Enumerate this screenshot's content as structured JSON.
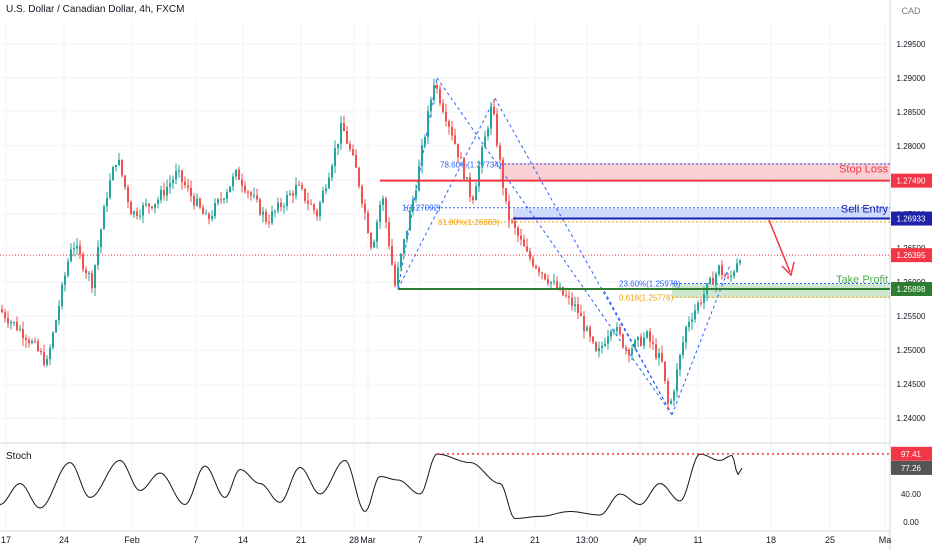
{
  "header": {
    "title": "U.S. Dollar / Canadian Dollar, 4h, FXCM",
    "currency": "CAD"
  },
  "indicator": {
    "name": "Stoch"
  },
  "chart_data": [
    {
      "type": "candlestick",
      "price_axis": {
        "ticks": [
          "1.29500",
          "1.29000",
          "1.28500",
          "1.28000",
          "1.27500",
          "1.27000",
          "1.26500",
          "1.26000",
          "1.25500",
          "1.25000",
          "1.24500",
          "1.24000"
        ],
        "ylim": [
          1.2365,
          1.2985
        ]
      },
      "time_axis": {
        "ticks": [
          "17",
          "24",
          "Feb",
          "7",
          "14",
          "21",
          "28",
          "Mar",
          "7",
          "14",
          "21",
          "13:00",
          "Apr",
          "11",
          "18",
          "25",
          "Ma"
        ]
      },
      "price_labels": [
        {
          "name": "stop-loss",
          "value": "1.27490",
          "color": "#f23645"
        },
        {
          "name": "sell-entry",
          "value": "1.26933",
          "color": "#1e22aa"
        },
        {
          "name": "current",
          "value": "1.26395",
          "color": "#f23645"
        },
        {
          "name": "take-profit",
          "value": "1.25898",
          "color": "#2e7d32"
        }
      ],
      "levels": {
        "stop_loss": {
          "label": "Stop Loss",
          "value": 1.2749,
          "zone": [
            1.2749,
            1.2775
          ],
          "color": "#f23645"
        },
        "sell_entry": {
          "label": "Sell Entry",
          "value": 1.26933,
          "zone": [
            1.26933,
            1.2708
          ],
          "color": "#1e22aa"
        },
        "take_profit": {
          "label": "Take Profit",
          "value": 1.25898,
          "zone": [
            1.2577,
            1.2597
          ],
          "color": "#4caf50"
        }
      },
      "fib_labels": [
        {
          "text": "78.60%(1.27734)",
          "color": "#2962ff",
          "price": 1.2773
        },
        {
          "text": "1(1.27092)",
          "color": "#2962ff",
          "price": 1.27092
        },
        {
          "text": "61.80%(1.26883)",
          "color": "#f0a30a",
          "price": 1.2688
        },
        {
          "text": "23.60%(1.25978)",
          "color": "#2962ff",
          "price": 1.25978
        },
        {
          "text": "0.618(1.25776)",
          "color": "#f0a30a",
          "price": 1.25776
        }
      ],
      "current_price": 1.26395,
      "swings": [
        {
          "label": "start-low",
          "price": 1.259
        },
        {
          "label": "high-a",
          "price": 1.29
        },
        {
          "label": "high-b",
          "price": 1.287
        },
        {
          "label": "low",
          "price": 1.2405
        }
      ],
      "colors": {
        "up": "#26a69a",
        "down": "#ef5350",
        "grid": "#f0f3fa",
        "axis": "#787b86"
      }
    },
    {
      "type": "line",
      "name": "Stoch",
      "value_labels": [
        {
          "value": "97.41",
          "color": "#f23645"
        },
        {
          "value": "77.26",
          "color": "#555555"
        }
      ],
      "ticks": [
        "40.00",
        "0.00"
      ],
      "ylim": [
        0,
        100
      ],
      "color": "#131722"
    }
  ]
}
